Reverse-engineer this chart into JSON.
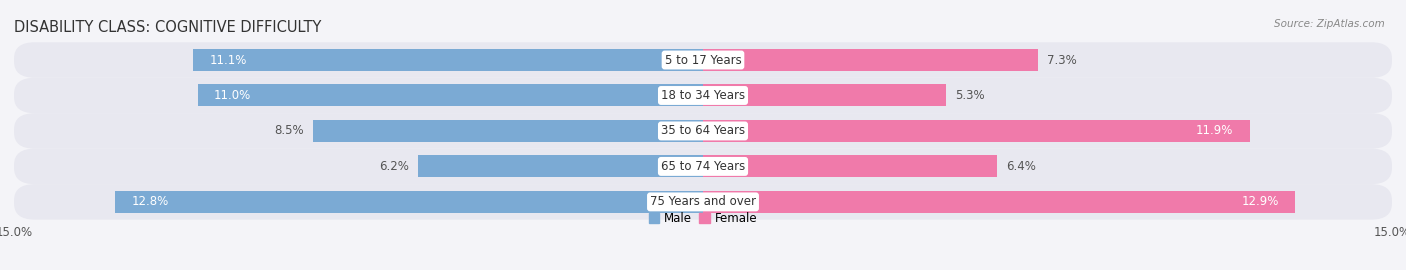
{
  "title": "DISABILITY CLASS: COGNITIVE DIFFICULTY",
  "source": "Source: ZipAtlas.com",
  "categories": [
    "5 to 17 Years",
    "18 to 34 Years",
    "35 to 64 Years",
    "65 to 74 Years",
    "75 Years and over"
  ],
  "male_values": [
    11.1,
    11.0,
    8.5,
    6.2,
    12.8
  ],
  "female_values": [
    7.3,
    5.3,
    11.9,
    6.4,
    12.9
  ],
  "male_color": "#7baad4",
  "female_color": "#f07aaa",
  "row_bg_color": "#e8e8f0",
  "fig_bg_color": "#f4f4f8",
  "max_val": 15.0,
  "bar_height": 0.62,
  "title_fontsize": 10.5,
  "label_fontsize": 8.5,
  "cat_fontsize": 8.5,
  "axis_label_fontsize": 8.5,
  "legend_fontsize": 8.5
}
